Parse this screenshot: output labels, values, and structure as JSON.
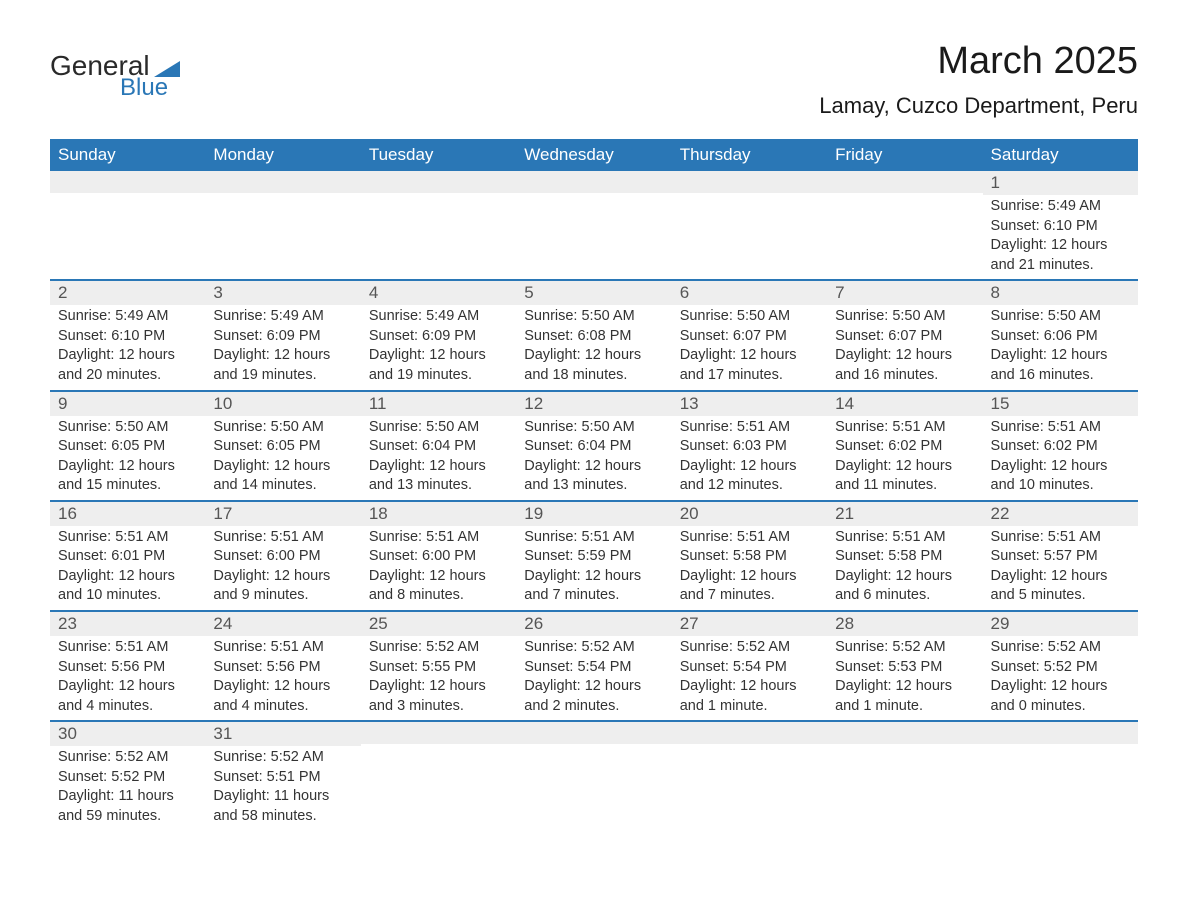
{
  "logo": {
    "text_general": "General",
    "text_blue": "Blue",
    "triangle_color": "#2a77b6"
  },
  "header": {
    "month_title": "March 2025",
    "location": "Lamay, Cuzco Department, Peru"
  },
  "colors": {
    "header_bg": "#2a77b6",
    "header_text": "#ffffff",
    "day_number_bg": "#eeeeee",
    "border": "#2a77b6",
    "body_text": "#333333"
  },
  "weekdays": [
    "Sunday",
    "Monday",
    "Tuesday",
    "Wednesday",
    "Thursday",
    "Friday",
    "Saturday"
  ],
  "weeks": [
    [
      null,
      null,
      null,
      null,
      null,
      null,
      {
        "n": "1",
        "sunrise": "Sunrise: 5:49 AM",
        "sunset": "Sunset: 6:10 PM",
        "daylight1": "Daylight: 12 hours",
        "daylight2": "and 21 minutes."
      }
    ],
    [
      {
        "n": "2",
        "sunrise": "Sunrise: 5:49 AM",
        "sunset": "Sunset: 6:10 PM",
        "daylight1": "Daylight: 12 hours",
        "daylight2": "and 20 minutes."
      },
      {
        "n": "3",
        "sunrise": "Sunrise: 5:49 AM",
        "sunset": "Sunset: 6:09 PM",
        "daylight1": "Daylight: 12 hours",
        "daylight2": "and 19 minutes."
      },
      {
        "n": "4",
        "sunrise": "Sunrise: 5:49 AM",
        "sunset": "Sunset: 6:09 PM",
        "daylight1": "Daylight: 12 hours",
        "daylight2": "and 19 minutes."
      },
      {
        "n": "5",
        "sunrise": "Sunrise: 5:50 AM",
        "sunset": "Sunset: 6:08 PM",
        "daylight1": "Daylight: 12 hours",
        "daylight2": "and 18 minutes."
      },
      {
        "n": "6",
        "sunrise": "Sunrise: 5:50 AM",
        "sunset": "Sunset: 6:07 PM",
        "daylight1": "Daylight: 12 hours",
        "daylight2": "and 17 minutes."
      },
      {
        "n": "7",
        "sunrise": "Sunrise: 5:50 AM",
        "sunset": "Sunset: 6:07 PM",
        "daylight1": "Daylight: 12 hours",
        "daylight2": "and 16 minutes."
      },
      {
        "n": "8",
        "sunrise": "Sunrise: 5:50 AM",
        "sunset": "Sunset: 6:06 PM",
        "daylight1": "Daylight: 12 hours",
        "daylight2": "and 16 minutes."
      }
    ],
    [
      {
        "n": "9",
        "sunrise": "Sunrise: 5:50 AM",
        "sunset": "Sunset: 6:05 PM",
        "daylight1": "Daylight: 12 hours",
        "daylight2": "and 15 minutes."
      },
      {
        "n": "10",
        "sunrise": "Sunrise: 5:50 AM",
        "sunset": "Sunset: 6:05 PM",
        "daylight1": "Daylight: 12 hours",
        "daylight2": "and 14 minutes."
      },
      {
        "n": "11",
        "sunrise": "Sunrise: 5:50 AM",
        "sunset": "Sunset: 6:04 PM",
        "daylight1": "Daylight: 12 hours",
        "daylight2": "and 13 minutes."
      },
      {
        "n": "12",
        "sunrise": "Sunrise: 5:50 AM",
        "sunset": "Sunset: 6:04 PM",
        "daylight1": "Daylight: 12 hours",
        "daylight2": "and 13 minutes."
      },
      {
        "n": "13",
        "sunrise": "Sunrise: 5:51 AM",
        "sunset": "Sunset: 6:03 PM",
        "daylight1": "Daylight: 12 hours",
        "daylight2": "and 12 minutes."
      },
      {
        "n": "14",
        "sunrise": "Sunrise: 5:51 AM",
        "sunset": "Sunset: 6:02 PM",
        "daylight1": "Daylight: 12 hours",
        "daylight2": "and 11 minutes."
      },
      {
        "n": "15",
        "sunrise": "Sunrise: 5:51 AM",
        "sunset": "Sunset: 6:02 PM",
        "daylight1": "Daylight: 12 hours",
        "daylight2": "and 10 minutes."
      }
    ],
    [
      {
        "n": "16",
        "sunrise": "Sunrise: 5:51 AM",
        "sunset": "Sunset: 6:01 PM",
        "daylight1": "Daylight: 12 hours",
        "daylight2": "and 10 minutes."
      },
      {
        "n": "17",
        "sunrise": "Sunrise: 5:51 AM",
        "sunset": "Sunset: 6:00 PM",
        "daylight1": "Daylight: 12 hours",
        "daylight2": "and 9 minutes."
      },
      {
        "n": "18",
        "sunrise": "Sunrise: 5:51 AM",
        "sunset": "Sunset: 6:00 PM",
        "daylight1": "Daylight: 12 hours",
        "daylight2": "and 8 minutes."
      },
      {
        "n": "19",
        "sunrise": "Sunrise: 5:51 AM",
        "sunset": "Sunset: 5:59 PM",
        "daylight1": "Daylight: 12 hours",
        "daylight2": "and 7 minutes."
      },
      {
        "n": "20",
        "sunrise": "Sunrise: 5:51 AM",
        "sunset": "Sunset: 5:58 PM",
        "daylight1": "Daylight: 12 hours",
        "daylight2": "and 7 minutes."
      },
      {
        "n": "21",
        "sunrise": "Sunrise: 5:51 AM",
        "sunset": "Sunset: 5:58 PM",
        "daylight1": "Daylight: 12 hours",
        "daylight2": "and 6 minutes."
      },
      {
        "n": "22",
        "sunrise": "Sunrise: 5:51 AM",
        "sunset": "Sunset: 5:57 PM",
        "daylight1": "Daylight: 12 hours",
        "daylight2": "and 5 minutes."
      }
    ],
    [
      {
        "n": "23",
        "sunrise": "Sunrise: 5:51 AM",
        "sunset": "Sunset: 5:56 PM",
        "daylight1": "Daylight: 12 hours",
        "daylight2": "and 4 minutes."
      },
      {
        "n": "24",
        "sunrise": "Sunrise: 5:51 AM",
        "sunset": "Sunset: 5:56 PM",
        "daylight1": "Daylight: 12 hours",
        "daylight2": "and 4 minutes."
      },
      {
        "n": "25",
        "sunrise": "Sunrise: 5:52 AM",
        "sunset": "Sunset: 5:55 PM",
        "daylight1": "Daylight: 12 hours",
        "daylight2": "and 3 minutes."
      },
      {
        "n": "26",
        "sunrise": "Sunrise: 5:52 AM",
        "sunset": "Sunset: 5:54 PM",
        "daylight1": "Daylight: 12 hours",
        "daylight2": "and 2 minutes."
      },
      {
        "n": "27",
        "sunrise": "Sunrise: 5:52 AM",
        "sunset": "Sunset: 5:54 PM",
        "daylight1": "Daylight: 12 hours",
        "daylight2": "and 1 minute."
      },
      {
        "n": "28",
        "sunrise": "Sunrise: 5:52 AM",
        "sunset": "Sunset: 5:53 PM",
        "daylight1": "Daylight: 12 hours",
        "daylight2": "and 1 minute."
      },
      {
        "n": "29",
        "sunrise": "Sunrise: 5:52 AM",
        "sunset": "Sunset: 5:52 PM",
        "daylight1": "Daylight: 12 hours",
        "daylight2": "and 0 minutes."
      }
    ],
    [
      {
        "n": "30",
        "sunrise": "Sunrise: 5:52 AM",
        "sunset": "Sunset: 5:52 PM",
        "daylight1": "Daylight: 11 hours",
        "daylight2": "and 59 minutes."
      },
      {
        "n": "31",
        "sunrise": "Sunrise: 5:52 AM",
        "sunset": "Sunset: 5:51 PM",
        "daylight1": "Daylight: 11 hours",
        "daylight2": "and 58 minutes."
      },
      null,
      null,
      null,
      null,
      null
    ]
  ]
}
